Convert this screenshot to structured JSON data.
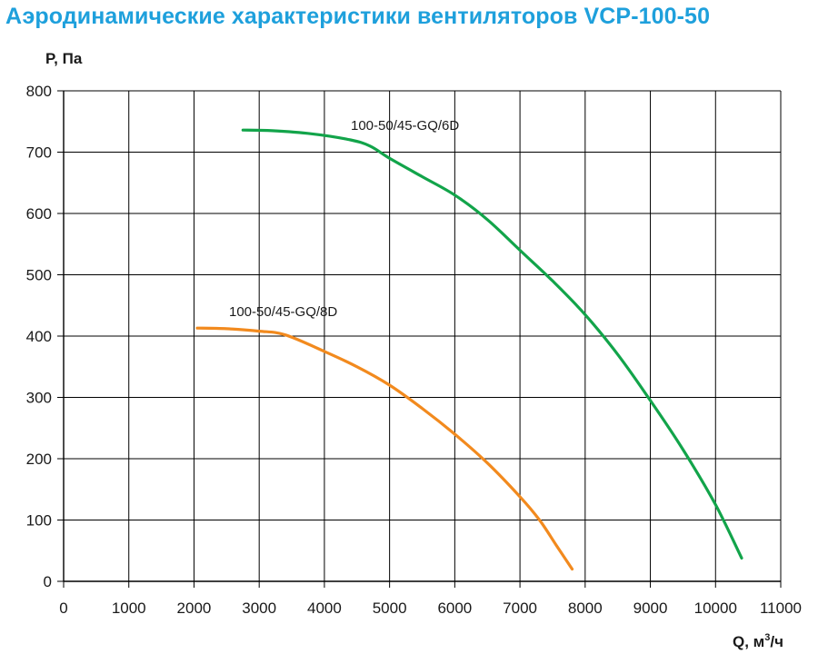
{
  "title": "Аэродинамические характеристики вентиляторов VCP-100-50",
  "colors": {
    "title": "#1ea0dc",
    "grid": "#000000",
    "series_6d": "#12a44a",
    "series_8d": "#f28a1e"
  },
  "chart_data": {
    "type": "line",
    "ylabel": "P, Па",
    "xlabel_main": "Q, м",
    "xlabel_sup": "3",
    "xlabel_tail": "/ч",
    "xlim": [
      0,
      11000
    ],
    "ylim": [
      0,
      800
    ],
    "grid": true,
    "x_ticks": [
      0,
      1000,
      2000,
      3000,
      4000,
      5000,
      6000,
      7000,
      8000,
      9000,
      10000,
      11000
    ],
    "y_ticks": [
      0,
      100,
      200,
      300,
      400,
      500,
      600,
      700,
      800
    ],
    "series": [
      {
        "name": "100-50/45-GQ/6D",
        "color": "#12a44a",
        "points": [
          [
            2750,
            736
          ],
          [
            3200,
            735
          ],
          [
            3800,
            730
          ],
          [
            4400,
            720
          ],
          [
            4700,
            710
          ],
          [
            5000,
            690
          ],
          [
            5500,
            660
          ],
          [
            6000,
            630
          ],
          [
            6500,
            590
          ],
          [
            7000,
            540
          ],
          [
            7500,
            490
          ],
          [
            8000,
            435
          ],
          [
            8500,
            370
          ],
          [
            9000,
            295
          ],
          [
            9500,
            215
          ],
          [
            10000,
            125
          ],
          [
            10400,
            38
          ]
        ]
      },
      {
        "name": "100-50/45-GQ/8D",
        "color": "#f28a1e",
        "points": [
          [
            2050,
            413
          ],
          [
            2500,
            412
          ],
          [
            3000,
            408
          ],
          [
            3400,
            402
          ],
          [
            4000,
            375
          ],
          [
            4500,
            350
          ],
          [
            5000,
            320
          ],
          [
            5500,
            282
          ],
          [
            6000,
            240
          ],
          [
            6500,
            193
          ],
          [
            7000,
            138
          ],
          [
            7300,
            100
          ],
          [
            7550,
            60
          ],
          [
            7800,
            20
          ]
        ]
      }
    ]
  }
}
